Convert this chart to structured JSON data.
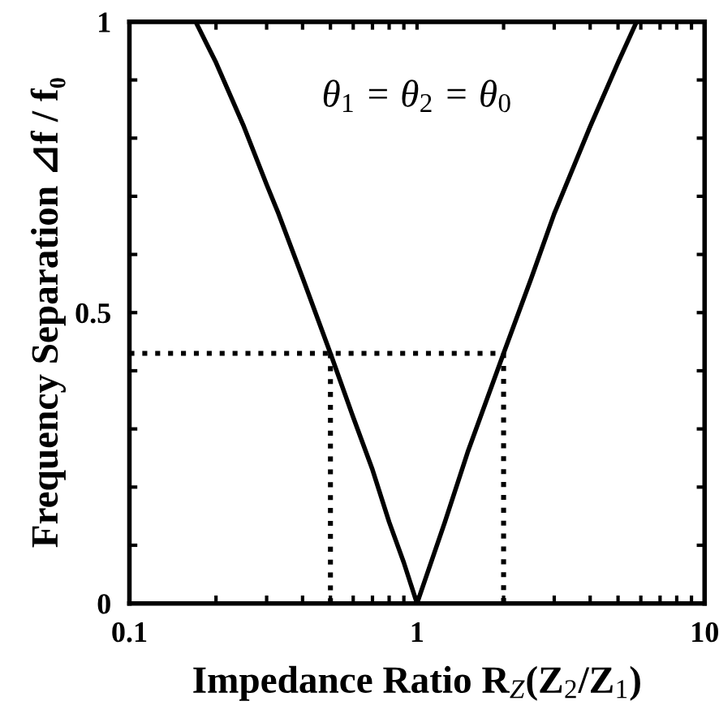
{
  "chart_data": {
    "type": "line",
    "xlabel": "Impedance Ratio R$_{Z}$(Z$_{2}$/Z$_{1}$)",
    "ylabel": "Frequency Separation ⊿f / f₀",
    "annotations": [
      "θ$_{1}$ = θ$_{2}$ = θ$_{0}$"
    ],
    "log": "x",
    "xlim": [
      0.1,
      10
    ],
    "ylim": [
      0,
      1
    ],
    "xticks": [
      0.1,
      {
        "value": 0.2,
        "label": null
      },
      {
        "value": 0.3,
        "label": null
      },
      {
        "value": 0.4,
        "label": null
      },
      {
        "value": 0.5,
        "label": null
      },
      {
        "value": 0.6,
        "label": null
      },
      {
        "value": 0.7,
        "label": null
      },
      {
        "value": 0.8,
        "label": null
      },
      {
        "value": 0.9,
        "label": null
      },
      1,
      {
        "value": 2,
        "label": null
      },
      {
        "value": 3,
        "label": null
      },
      {
        "value": 4,
        "label": null
      },
      {
        "value": 5,
        "label": null
      },
      {
        "value": 6,
        "label": null
      },
      {
        "value": 7,
        "label": null
      },
      {
        "value": 8,
        "label": null
      },
      {
        "value": 9,
        "label": null
      },
      10
    ],
    "yticks": [
      0,
      {
        "value": 0.1,
        "label": null
      },
      {
        "value": 0.2,
        "label": null
      },
      {
        "value": 0.3,
        "label": null
      },
      {
        "value": 0.4,
        "label": null
      },
      0.5,
      {
        "value": 0.6,
        "label": null
      },
      {
        "value": 0.7,
        "label": null
      },
      {
        "value": 0.8,
        "label": null
      },
      {
        "value": 0.9,
        "label": null
      },
      1
    ],
    "grid": false,
    "marker": "none",
    "series": [
      {
        "color": "#000000",
        "line_style": "solid",
        "x": [
          0.17,
          0.2,
          0.25,
          0.3,
          0.33,
          0.4,
          0.5,
          0.6,
          0.7,
          0.8,
          0.9,
          1,
          1.25,
          1.5,
          2,
          2.5,
          3,
          4,
          5,
          5.8
        ],
        "values": [
          1.0,
          0.93,
          0.82,
          0.72,
          0.67,
          0.56,
          0.43,
          0.32,
          0.23,
          0.14,
          0.07,
          0,
          0.14,
          0.26,
          0.43,
          0.56,
          0.67,
          0.82,
          0.93,
          1.0
        ]
      },
      {
        "color": "#000000",
        "line_style": "dotted",
        "x": [
          0.1,
          2,
          2
        ],
        "values": [
          0.43,
          0.43,
          0
        ]
      },
      {
        "color": "#000000",
        "line_style": "dotted",
        "x": [
          0.5,
          0.5
        ],
        "values": [
          0.43,
          0
        ]
      }
    ]
  }
}
